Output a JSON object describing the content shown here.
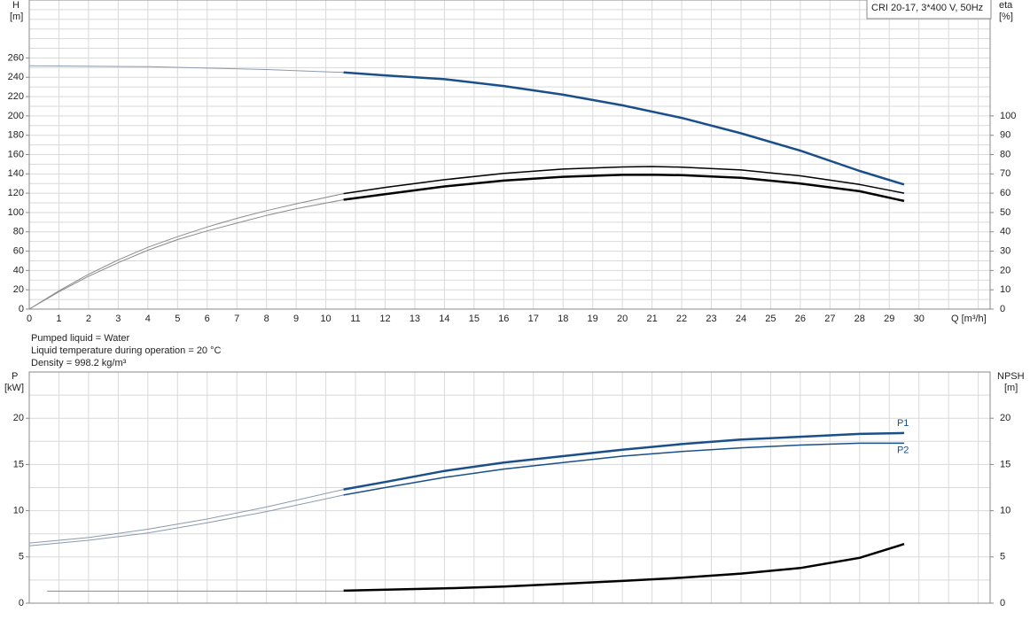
{
  "chart_data": [
    {
      "type": "line",
      "box_label": "CRI 20-17, 3*400 V, 50Hz",
      "ylabel": "H",
      "yunit": "[m]",
      "y2label": "eta",
      "y2unit": "[%]",
      "xlabel": "Q [m³/h]",
      "annotations": [
        "Pumped liquid = Water",
        "Liquid temperature during operation = 20 °C",
        "Density = 998.2 kg/m³"
      ],
      "xlim": [
        0,
        32.4
      ],
      "xticks": [
        0,
        1,
        2,
        3,
        4,
        5,
        6,
        7,
        8,
        9,
        10,
        11,
        12,
        13,
        14,
        15,
        16,
        17,
        18,
        19,
        20,
        21,
        22,
        23,
        24,
        25,
        26,
        27,
        28,
        29,
        30
      ],
      "minor_xticks": [
        31,
        32
      ],
      "xtick_labels": true,
      "ylim": [
        0,
        320
      ],
      "yticks": [
        0,
        20,
        40,
        60,
        80,
        100,
        120,
        140,
        160,
        180,
        200,
        220,
        240,
        260
      ],
      "minor_yticks": [
        10,
        30,
        50,
        70,
        90,
        110,
        130,
        150,
        170,
        190,
        210,
        230,
        250,
        270,
        280,
        290,
        300,
        310
      ],
      "y2lim": [
        0,
        160
      ],
      "y2ticks": [
        0,
        10,
        20,
        30,
        40,
        50,
        60,
        70,
        80,
        90,
        100
      ],
      "grid": true,
      "series": [
        {
          "color": "#8c99ad",
          "width": 1,
          "axis": "y",
          "x": [
            0,
            2,
            4,
            6,
            8,
            10.6
          ],
          "values": [
            252,
            251.5,
            251,
            249.5,
            248,
            245
          ]
        },
        {
          "color": "#1a4f8a",
          "width": 2.5,
          "axis": "y",
          "x": [
            10.6,
            12,
            14,
            16,
            18,
            20,
            22,
            24,
            26,
            28,
            29.5
          ],
          "values": [
            245,
            242,
            238,
            231,
            222,
            211,
            198,
            182,
            164,
            143,
            129
          ]
        },
        {
          "color": "#8a8a8a",
          "width": 1,
          "axis": "y2",
          "x": [
            0,
            1,
            2,
            3,
            4,
            5,
            6,
            7,
            8,
            9,
            10.6
          ],
          "values": [
            0,
            9.5,
            18,
            25.5,
            32,
            37.5,
            42.5,
            47,
            51,
            54.5,
            59.8
          ]
        },
        {
          "color": "#000000",
          "width": 1.5,
          "axis": "y2",
          "x": [
            10.6,
            12,
            14,
            16,
            18,
            20,
            21,
            22,
            24,
            26,
            28,
            29.5
          ],
          "values": [
            59.8,
            63,
            67,
            70.3,
            72.5,
            73.6,
            73.8,
            73.5,
            72,
            69,
            64.5,
            60
          ]
        },
        {
          "color": "#8a8a8a",
          "width": 1,
          "axis": "y2",
          "x": [
            0,
            1,
            2,
            3,
            4,
            5,
            6,
            7,
            8,
            9,
            10.6
          ],
          "values": [
            0,
            9,
            17,
            24,
            30.5,
            36,
            40.5,
            44.5,
            48.5,
            52,
            56.6
          ]
        },
        {
          "color": "#000000",
          "width": 2.5,
          "axis": "y2",
          "x": [
            10.6,
            12,
            14,
            16,
            18,
            20,
            21,
            22,
            24,
            26,
            28,
            29.5
          ],
          "values": [
            56.6,
            59.5,
            63.5,
            66.5,
            68.5,
            69.5,
            69.6,
            69.3,
            68,
            65,
            61,
            56
          ]
        }
      ]
    },
    {
      "type": "line",
      "ylabel": "P",
      "yunit": "[kW]",
      "y2label": "NPSH",
      "y2unit": "[m]",
      "xlim": [
        0,
        32.4
      ],
      "xticks": [
        0,
        1,
        2,
        3,
        4,
        5,
        6,
        7,
        8,
        9,
        10,
        11,
        12,
        13,
        14,
        15,
        16,
        17,
        18,
        19,
        20,
        21,
        22,
        23,
        24,
        25,
        26,
        27,
        28,
        29,
        30
      ],
      "minor_xticks": [
        31,
        32
      ],
      "xtick_labels": false,
      "ylim": [
        0,
        25
      ],
      "yticks": [
        0,
        5,
        10,
        15,
        20
      ],
      "minor_yticks": [
        2.5,
        7.5,
        12.5,
        17.5,
        22.5
      ],
      "y2lim": [
        0,
        25
      ],
      "y2ticks": [
        0,
        5,
        10,
        15,
        20
      ],
      "grid": true,
      "series": [
        {
          "color": "#8c99ad",
          "width": 1,
          "axis": "y",
          "x": [
            0,
            2,
            4,
            6,
            8,
            10.6
          ],
          "values": [
            6.5,
            7.1,
            8.0,
            9.1,
            10.4,
            12.3
          ]
        },
        {
          "name": "P1",
          "color": "#1a4f8a",
          "width": 2.5,
          "axis": "y",
          "x": [
            10.6,
            12,
            14,
            16,
            18,
            20,
            22,
            24,
            26,
            28,
            29.5
          ],
          "values": [
            12.3,
            13.1,
            14.3,
            15.2,
            15.9,
            16.6,
            17.2,
            17.7,
            18.0,
            18.3,
            18.4
          ]
        },
        {
          "color": "#8c99ad",
          "width": 1,
          "axis": "y",
          "x": [
            0,
            2,
            4,
            6,
            8,
            10.6
          ],
          "values": [
            6.2,
            6.8,
            7.6,
            8.7,
            9.9,
            11.7
          ]
        },
        {
          "name": "P2",
          "color": "#1a4f8a",
          "width": 1.5,
          "axis": "y",
          "x": [
            10.6,
            12,
            14,
            16,
            18,
            20,
            22,
            24,
            26,
            28,
            29.5
          ],
          "values": [
            11.7,
            12.5,
            13.6,
            14.5,
            15.2,
            15.9,
            16.4,
            16.8,
            17.1,
            17.3,
            17.3
          ]
        },
        {
          "color": "#8a8a8a",
          "width": 1,
          "axis": "y2",
          "x": [
            0.6,
            10.6
          ],
          "values": [
            1.3,
            1.3
          ]
        },
        {
          "color": "#000000",
          "width": 2.5,
          "axis": "y2",
          "x": [
            10.6,
            14,
            16,
            18,
            20,
            22,
            24,
            26,
            28,
            29.5
          ],
          "values": [
            1.35,
            1.6,
            1.8,
            2.1,
            2.4,
            2.75,
            3.2,
            3.8,
            4.9,
            6.4
          ]
        }
      ]
    }
  ]
}
